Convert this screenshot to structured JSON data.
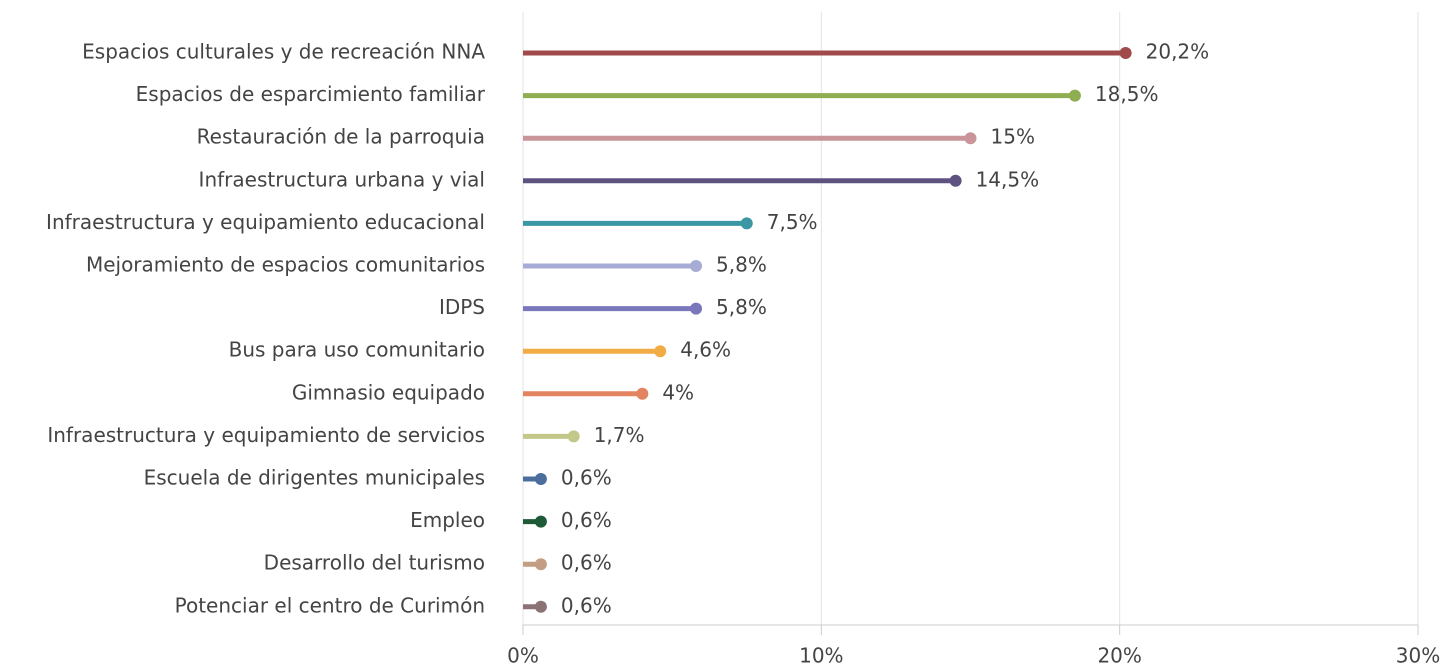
{
  "chart_data": {
    "type": "lollipop",
    "categories": [
      "Espacios culturales y de recreación NNA",
      "Espacios de esparcimiento familiar",
      "Restauración de la parroquia",
      "Infraestructura urbana y vial",
      "Infraestructura y equipamiento educacional",
      "Mejoramiento de espacios comunitarios",
      "IDPS",
      "Bus para uso comunitario",
      "Gimnasio equipado",
      "Infraestructura y equipamiento de servicios",
      "Escuela de dirigentes municipales",
      "Empleo",
      "Desarrollo del turismo",
      "Potenciar el centro de Curimón"
    ],
    "values": [
      20.2,
      18.5,
      15,
      14.5,
      7.5,
      5.8,
      5.8,
      4.6,
      4,
      1.7,
      0.6,
      0.6,
      0.6,
      0.6
    ],
    "value_labels": [
      "20,2%",
      "18,5%",
      "15%",
      "14,5%",
      "7,5%",
      "5,8%",
      "5,8%",
      "4,6%",
      "4%",
      "1,7%",
      "0,6%",
      "0,6%",
      "0,6%",
      "0,6%"
    ],
    "colors": [
      "#a04a4a",
      "#8fae52",
      "#c9959a",
      "#5e5280",
      "#3b97a3",
      "#a7acd6",
      "#7b77bd",
      "#f2ac45",
      "#e2845f",
      "#c3c88a",
      "#4b6e9c",
      "#1d5a35",
      "#c49e82",
      "#8b7275"
    ],
    "xlim": [
      0,
      30
    ],
    "xticks": [
      {
        "value": 0,
        "label": "0%"
      },
      {
        "value": 10,
        "label": "10%"
      },
      {
        "value": 20,
        "label": "20%"
      },
      {
        "value": 30,
        "label": "30%"
      }
    ],
    "grid": true
  }
}
